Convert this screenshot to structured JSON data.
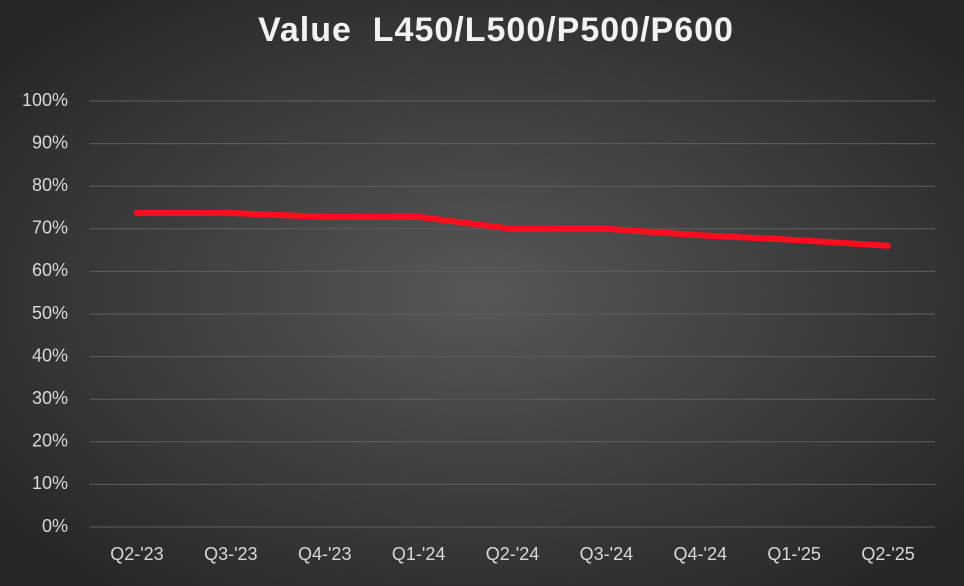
{
  "chart_data": {
    "type": "line",
    "title": "Value  L450/L500/P500/P600",
    "categories": [
      "Q2-'23",
      "Q3-'23",
      "Q4-'23",
      "Q1-'24",
      "Q2-'24",
      "Q3-'24",
      "Q4-'24",
      "Q1-'25",
      "Q2-'25"
    ],
    "values": [
      73.7,
      73.7,
      72.8,
      72.8,
      70,
      70,
      68.5,
      67.4,
      66
    ],
    "color": "#ff0d1f",
    "ylim": [
      0,
      100
    ],
    "yticks": [
      {
        "value": 0,
        "label": "0%"
      },
      {
        "value": 10,
        "label": "10%"
      },
      {
        "value": 20,
        "label": "20%"
      },
      {
        "value": 30,
        "label": "30%"
      },
      {
        "value": 40,
        "label": "40%"
      },
      {
        "value": 50,
        "label": "50%"
      },
      {
        "value": 60,
        "label": "60%"
      },
      {
        "value": 70,
        "label": "70%"
      },
      {
        "value": 80,
        "label": "80%"
      },
      {
        "value": 90,
        "label": "90%"
      },
      {
        "value": 100,
        "label": "100%"
      }
    ],
    "grid": true
  }
}
